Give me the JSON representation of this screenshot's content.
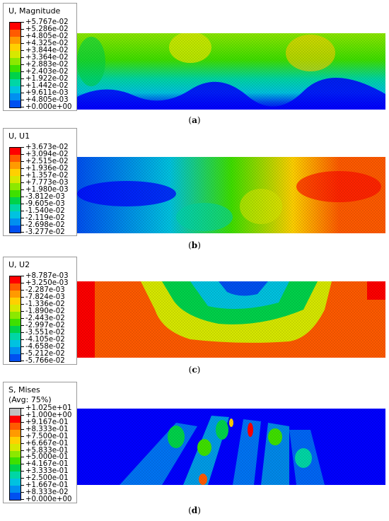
{
  "figures": [
    {
      "id": "a",
      "legend_title": "U, Magnitude",
      "legend_values": [
        "+5.767e-02",
        "+5.286e-02",
        "+4.805e-02",
        "+4.325e-02",
        "+3.844e-02",
        "+3.364e-02",
        "+2.883e-02",
        "+2.403e-02",
        "+1.922e-02",
        "+1.442e-02",
        "+9.611e-03",
        "+4.805e-03",
        "+0.000e+00"
      ],
      "caption_label": "a"
    },
    {
      "id": "b",
      "legend_title": "U, U1",
      "legend_values": [
        "+3.673e-02",
        "+3.094e-02",
        "+2.515e-02",
        "+1.936e-02",
        "+1.357e-02",
        "+7.773e-03",
        "+1.980e-03",
        "-3.812e-03",
        "-9.605e-03",
        "-1.540e-02",
        "-2.119e-02",
        "-2.698e-02",
        "-3.277e-02"
      ],
      "caption_label": "b"
    },
    {
      "id": "c",
      "legend_title": "U, U2",
      "legend_values": [
        "+8.787e-03",
        "+3.250e-03",
        "-2.287e-03",
        "-7.824e-03",
        "-1.336e-02",
        "-1.890e-02",
        "-2.443e-02",
        "-2.997e-02",
        "-3.551e-02",
        "-4.105e-02",
        "-4.658e-02",
        "-5.212e-02",
        "-5.766e-02"
      ],
      "caption_label": "c"
    },
    {
      "id": "d",
      "legend_title": "S, Mises\n(Avg: 75%)",
      "legend_values": [
        "+1.025e+01",
        "+1.000e+00",
        "+9.167e-01",
        "+8.333e-01",
        "+7.500e-01",
        "+6.667e-01",
        "+5.833e-01",
        "+5.000e-01",
        "+4.167e-01",
        "+3.333e-01",
        "+2.500e-01",
        "+1.667e-01",
        "+8.333e-02",
        "+0.000e+00"
      ],
      "caption_label": "d"
    }
  ],
  "colors": {
    "scale": [
      "#ff0000",
      "#ff5a00",
      "#ff9a00",
      "#ffd000",
      "#d7e800",
      "#8ce800",
      "#3ee000",
      "#00d24a",
      "#00d6a5",
      "#00c2e0",
      "#0090f0",
      "#0050f0",
      "#0000ff"
    ],
    "mises_overflow": "#c0c0c0"
  }
}
